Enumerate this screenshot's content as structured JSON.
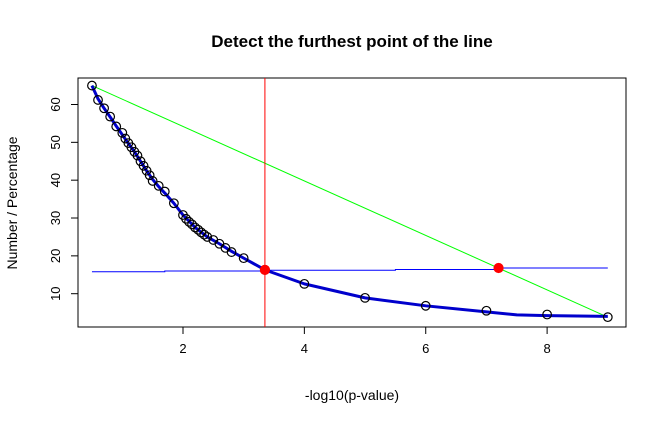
{
  "chart_data": {
    "type": "scatter",
    "title": "Detect the furthest point of the line",
    "xlabel": "-log10(p-value)",
    "ylabel": "Number / Percentage",
    "xlim": [
      0.27,
      9.3
    ],
    "ylim": [
      1.2,
      67.0
    ],
    "x_ticks": [
      2,
      4,
      6,
      8
    ],
    "y_ticks": [
      10,
      20,
      30,
      40,
      50,
      60
    ],
    "grid": false,
    "legend": "none",
    "colors": {
      "points": "#000000",
      "curve": "#0000cc",
      "chord": "#00ff00",
      "distance_line": "#0000ff",
      "vertical_line": "#ff0000",
      "marker": "#ff0000"
    },
    "series": [
      {
        "kind": "points",
        "x": [
          0.5,
          0.6,
          0.7,
          0.8,
          0.9,
          1.0,
          1.05,
          1.1,
          1.15,
          1.2,
          1.25,
          1.3,
          1.35,
          1.4,
          1.45,
          1.5,
          1.6,
          1.7,
          1.85,
          2.0,
          2.05,
          2.1,
          2.15,
          2.2,
          2.25,
          2.3,
          2.35,
          2.4,
          2.5,
          2.6,
          2.7,
          2.8,
          3.0,
          3.35,
          4.0,
          5.0,
          6.0,
          7.0,
          8.0,
          9.0
        ],
        "y": [
          65.0,
          61.2,
          59.0,
          56.8,
          54.2,
          52.5,
          51.0,
          49.8,
          48.7,
          47.5,
          46.5,
          45.0,
          43.8,
          42.5,
          41.3,
          39.8,
          38.5,
          37.0,
          33.9,
          30.8,
          29.8,
          29.0,
          28.3,
          27.5,
          26.9,
          26.2,
          25.6,
          25.0,
          24.2,
          23.2,
          22.1,
          21.0,
          19.4,
          16.3,
          12.6,
          8.9,
          6.8,
          5.5,
          4.5,
          3.8
        ]
      },
      {
        "kind": "fitted-curve",
        "x": [
          0.5,
          0.6,
          0.7,
          0.8,
          0.9,
          1.0,
          1.1,
          1.2,
          1.3,
          1.4,
          1.5,
          1.6,
          1.7,
          1.85,
          2.0,
          2.2,
          2.4,
          2.6,
          2.8,
          3.0,
          3.35,
          4.0,
          5.0,
          6.0,
          7.0,
          7.5,
          8.0,
          9.0
        ],
        "y": [
          65.0,
          61.5,
          59.0,
          56.7,
          54.3,
          52.0,
          49.7,
          47.5,
          45.0,
          42.5,
          40.2,
          38.3,
          36.6,
          33.9,
          30.8,
          27.5,
          25.0,
          23.2,
          21.2,
          19.4,
          16.3,
          12.6,
          8.9,
          6.8,
          5.2,
          4.4,
          4.2,
          4.0
        ]
      },
      {
        "kind": "chord",
        "x": [
          0.5,
          9.0
        ],
        "y": [
          65.0,
          3.8
        ]
      },
      {
        "kind": "distance-step-line",
        "x": [
          0.5,
          1.7,
          1.7,
          3.35,
          3.35,
          5.5,
          5.5,
          7.2,
          7.2,
          9.0
        ],
        "y": [
          15.8,
          15.8,
          16.0,
          16.0,
          16.2,
          16.2,
          16.4,
          16.4,
          16.8,
          16.8
        ]
      }
    ],
    "vertical_line_x": 3.35,
    "highlight_points": [
      {
        "x": 3.35,
        "y": 16.3
      },
      {
        "x": 7.2,
        "y": 16.8
      }
    ]
  }
}
